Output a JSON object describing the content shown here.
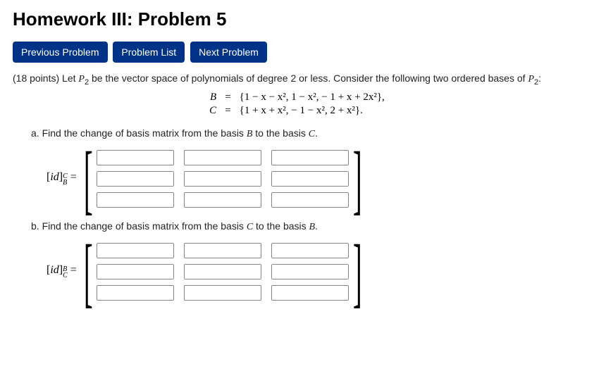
{
  "title": "Homework III: Problem 5",
  "nav": {
    "prev": "Previous Problem",
    "list": "Problem List",
    "next": "Next Problem"
  },
  "problem": {
    "points_prefix": "(18 points) Let ",
    "space_symbol": "P",
    "space_sub": "2",
    "mid_text": " be the vector space of polynomials of degree 2 or less. Consider the following two ordered bases of ",
    "tail_colon": ":"
  },
  "bases": {
    "B": {
      "name": "B",
      "eq": "=",
      "set": "{1 − x − x², 1 − x², − 1 + x + 2x²},"
    },
    "C": {
      "name": "C",
      "eq": "=",
      "set": "{1 + x + x², − 1 − x², 2 + x²}."
    }
  },
  "parts": {
    "a": {
      "text": "a. Find the change of basis matrix from the basis ",
      "from": "B",
      "mid": " to the basis ",
      "to": "C",
      "dot": "."
    },
    "b": {
      "text": "b. Find the change of basis matrix from the basis ",
      "from": "C",
      "mid": " to the basis ",
      "to": "B",
      "dot": "."
    }
  },
  "matrices": {
    "a": {
      "label_id": "id",
      "sup": "C",
      "sub": "B",
      "eq": " = ",
      "cells": [
        "",
        "",
        "",
        "",
        "",
        "",
        "",
        "",
        ""
      ]
    },
    "b": {
      "label_id": "id",
      "sup": "B",
      "sub": "C",
      "eq": " = ",
      "cells": [
        "",
        "",
        "",
        "",
        "",
        "",
        "",
        "",
        ""
      ]
    }
  },
  "brackets": {
    "left": "[",
    "right": "]"
  }
}
